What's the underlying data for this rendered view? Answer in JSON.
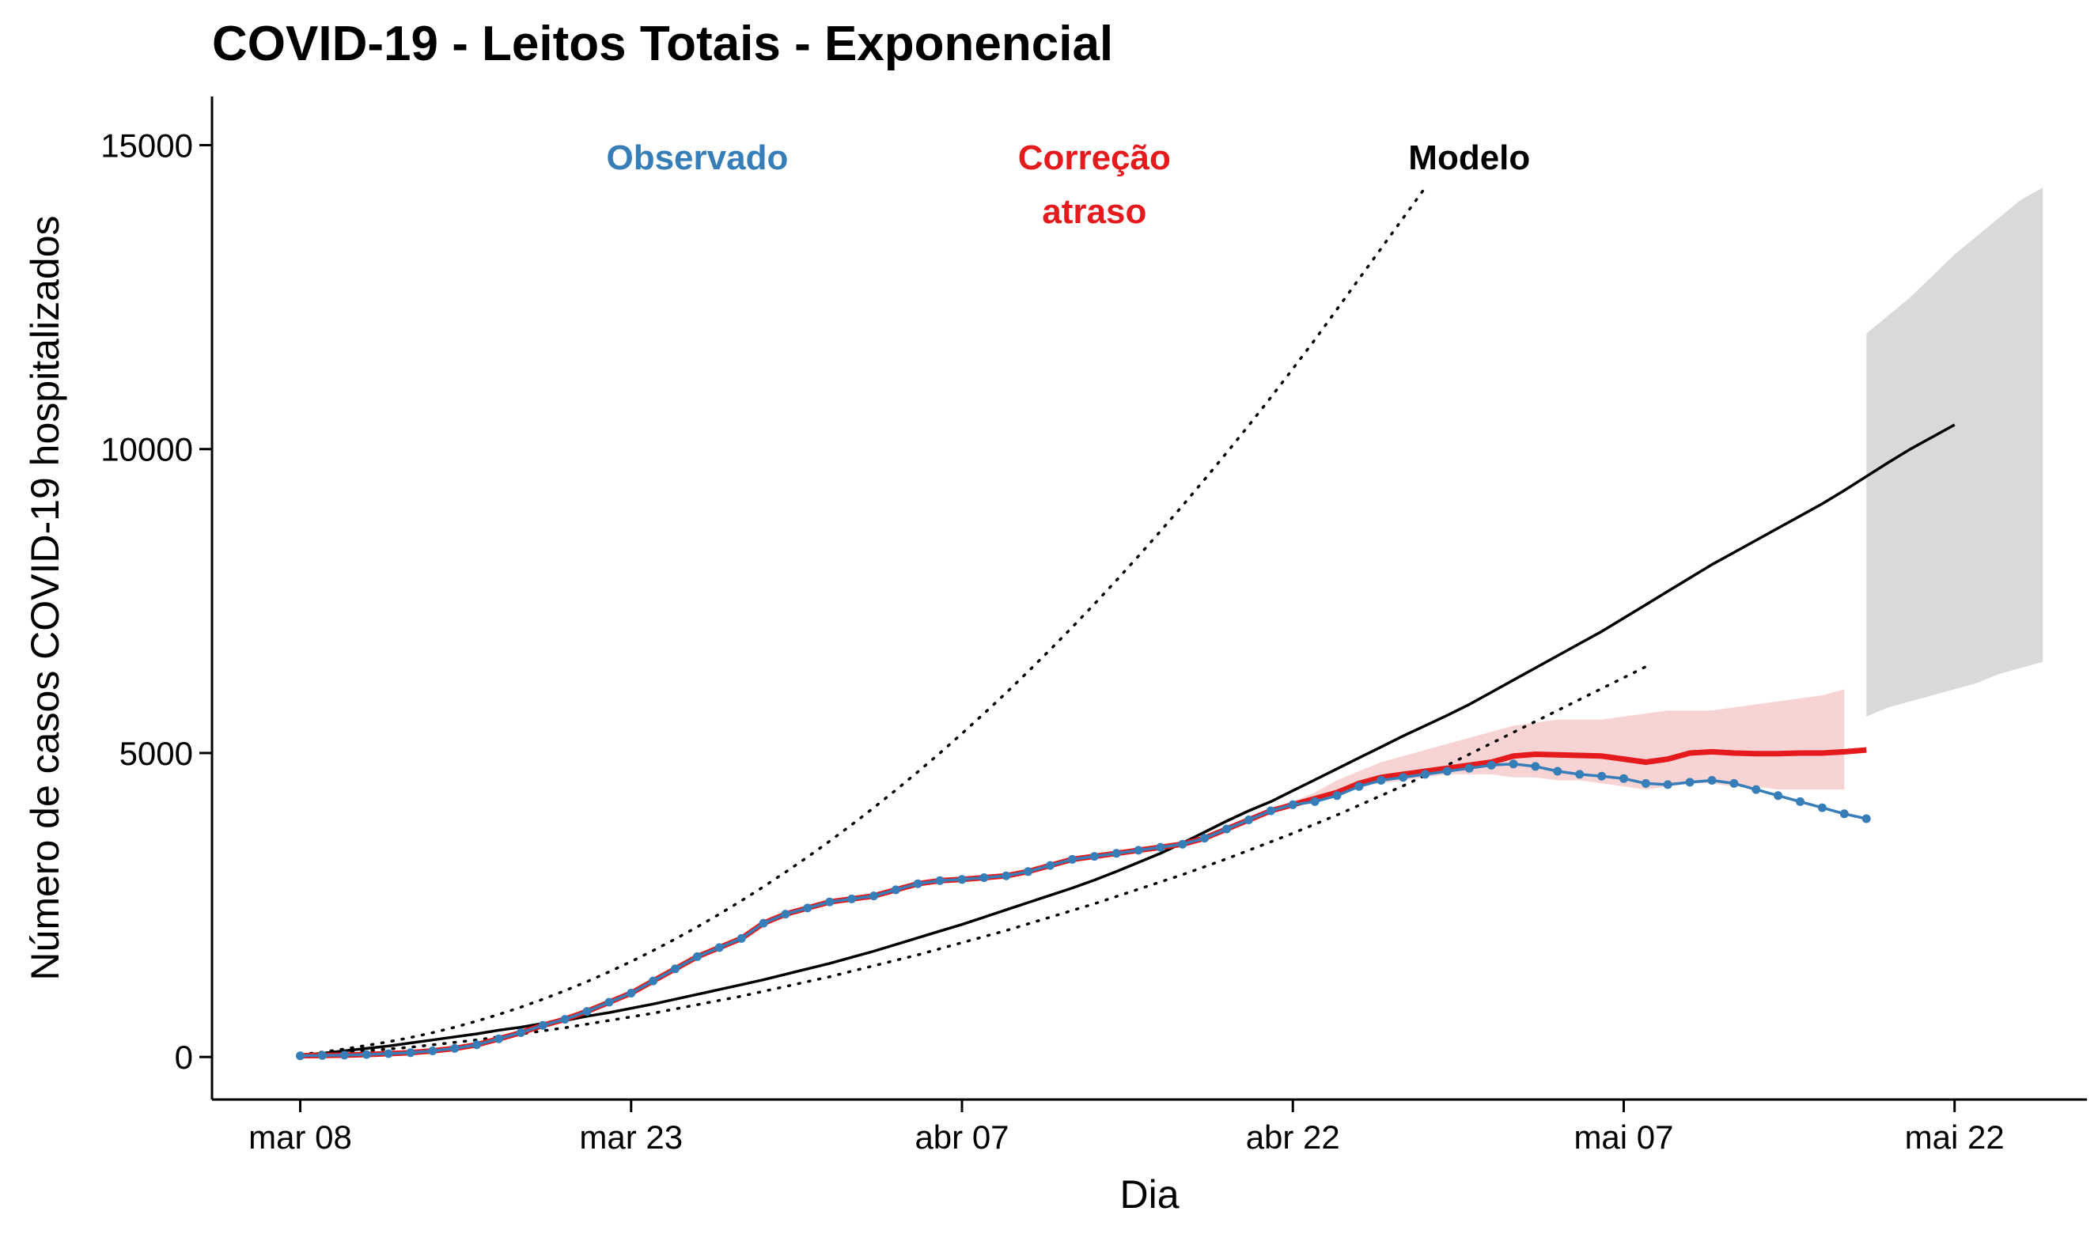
{
  "chart_data": {
    "type": "line",
    "title": "COVID-19 - Leitos Totais - Exponencial",
    "xlabel": "Dia",
    "ylabel": "Número de casos COVID-19 hospitalizados",
    "x_ticks": [
      {
        "label": "mar 08",
        "day": 0
      },
      {
        "label": "mar 23",
        "day": 15
      },
      {
        "label": "abr 07",
        "day": 30
      },
      {
        "label": "abr 22",
        "day": 45
      },
      {
        "label": "mai 07",
        "day": 60
      },
      {
        "label": "mai 22",
        "day": 75
      }
    ],
    "y_ticks": [
      0,
      5000,
      10000,
      15000
    ],
    "xlim": [
      -4,
      81
    ],
    "ylim": [
      -700,
      15800
    ],
    "grid": false,
    "legend": "annotations at top",
    "colors": {
      "observed": "#377EB8",
      "corrected": "#E41A1C",
      "corrected_band": "#F4B6B8",
      "model": "#000000",
      "forecast_band": "#D9D9D9"
    },
    "annotations": [
      {
        "lines": [
          "Observado"
        ],
        "color": "#377EB8",
        "day": 18,
        "y": 14800
      },
      {
        "lines": [
          "Correção",
          "atraso"
        ],
        "color": "#E41A1C",
        "day": 36,
        "y": 14800
      },
      {
        "lines": [
          "Modelo"
        ],
        "color": "#000000",
        "day": 53,
        "y": 14800
      }
    ],
    "series": [
      {
        "name": "Observado",
        "start_day": 0,
        "values": [
          20,
          25,
          30,
          40,
          55,
          70,
          100,
          140,
          200,
          300,
          400,
          520,
          620,
          750,
          900,
          1050,
          1250,
          1450,
          1650,
          1800,
          1950,
          2200,
          2350,
          2450,
          2550,
          2600,
          2650,
          2750,
          2850,
          2900,
          2920,
          2950,
          2980,
          3050,
          3150,
          3250,
          3300,
          3350,
          3400,
          3450,
          3500,
          3600,
          3750,
          3900,
          4050,
          4150,
          4200,
          4300,
          4450,
          4550,
          4600,
          4650,
          4700,
          4750,
          4800,
          4820,
          4780,
          4700,
          4650,
          4620,
          4580,
          4500,
          4480,
          4520,
          4550,
          4500,
          4400,
          4300,
          4200,
          4100,
          4000,
          3920
        ]
      },
      {
        "name": "Correção atraso",
        "start_day": 0,
        "values": [
          20,
          25,
          30,
          40,
          55,
          70,
          100,
          140,
          200,
          300,
          400,
          520,
          620,
          750,
          900,
          1050,
          1250,
          1450,
          1650,
          1800,
          1950,
          2200,
          2350,
          2450,
          2550,
          2600,
          2650,
          2750,
          2850,
          2900,
          2920,
          2950,
          2980,
          3050,
          3150,
          3250,
          3300,
          3350,
          3400,
          3450,
          3500,
          3600,
          3750,
          3900,
          4050,
          4150,
          4250,
          4350,
          4500,
          4600,
          4650,
          4700,
          4750,
          4800,
          4850,
          4950,
          4980,
          4970,
          4960,
          4950,
          4900,
          4850,
          4900,
          5000,
          5020,
          5000,
          4990,
          4990,
          5000,
          5000,
          5020,
          5050
        ]
      },
      {
        "name": "Modelo",
        "start_day": 0,
        "values": [
          30,
          60,
          100,
          140,
          180,
          230,
          280,
          330,
          380,
          440,
          490,
          550,
          600,
          670,
          730,
          800,
          870,
          950,
          1030,
          1110,
          1190,
          1270,
          1360,
          1450,
          1540,
          1640,
          1740,
          1850,
          1960,
          2070,
          2180,
          2300,
          2420,
          2540,
          2660,
          2780,
          2910,
          3050,
          3200,
          3350,
          3520,
          3700,
          3880,
          4050,
          4200,
          4380,
          4560,
          4740,
          4920,
          5100,
          5280,
          5450,
          5620,
          5800,
          6000,
          6200,
          6400,
          6600,
          6800,
          7000,
          7220,
          7440,
          7660,
          7880,
          8100,
          8300,
          8500,
          8700,
          8900,
          9100,
          9320,
          9550,
          9780,
          10000,
          10200,
          10400
        ]
      },
      {
        "name": "Modelo upper",
        "start_day": 0,
        "values": [
          40,
          80,
          130,
          190,
          250,
          320,
          400,
          490,
          590,
          700,
          820,
          950,
          1090,
          1240,
          1400,
          1570,
          1750,
          1940,
          2140,
          2350,
          2570,
          2800,
          3040,
          3290,
          3550,
          3820,
          4100,
          4390,
          4690,
          5000,
          5320,
          5650,
          5990,
          6340,
          6700,
          7070,
          7450,
          7840,
          8240,
          8650,
          9070,
          9500,
          9940,
          10390,
          10850,
          11320,
          11800,
          12300,
          12800,
          13300,
          13800,
          14300
        ]
      },
      {
        "name": "Modelo lower",
        "start_day": 0,
        "values": [
          20,
          40,
          70,
          100,
          130,
          160,
          200,
          240,
          280,
          330,
          380,
          430,
          480,
          540,
          600,
          660,
          720,
          790,
          860,
          930,
          1000,
          1080,
          1160,
          1240,
          1320,
          1410,
          1500,
          1590,
          1680,
          1780,
          1880,
          1980,
          2080,
          2190,
          2300,
          2410,
          2520,
          2640,
          2760,
          2880,
          3000,
          3130,
          3260,
          3400,
          3540,
          3680,
          3830,
          3980,
          4140,
          4300,
          4460,
          4630,
          4800,
          4980,
          5160,
          5340,
          5520,
          5700,
          5880,
          6060,
          6240,
          6420
        ]
      }
    ],
    "bands": [
      {
        "name": "Correção atraso interval",
        "start_day": 44,
        "upper": [
          4050,
          4200,
          4350,
          4550,
          4700,
          4850,
          4950,
          5050,
          5150,
          5250,
          5350,
          5450,
          5500,
          5550,
          5550,
          5550,
          5600,
          5650,
          5700,
          5700,
          5700,
          5750,
          5800,
          5850,
          5900,
          5950,
          6050
        ],
        "lower": [
          4050,
          4150,
          4250,
          4350,
          4450,
          4500,
          4550,
          4600,
          4650,
          4650,
          4650,
          4600,
          4600,
          4550,
          4550,
          4500,
          4450,
          4400,
          4450,
          4500,
          4500,
          4450,
          4450,
          4400,
          4400,
          4400,
          4400
        ]
      },
      {
        "name": "Modelo forecast interval",
        "start_day": 71,
        "upper": [
          11900,
          12200,
          12500,
          12850,
          13200,
          13500,
          13800,
          14100,
          14300
        ],
        "lower": [
          5600,
          5750,
          5850,
          5950,
          6050,
          6150,
          6300,
          6400,
          6500
        ]
      }
    ]
  }
}
